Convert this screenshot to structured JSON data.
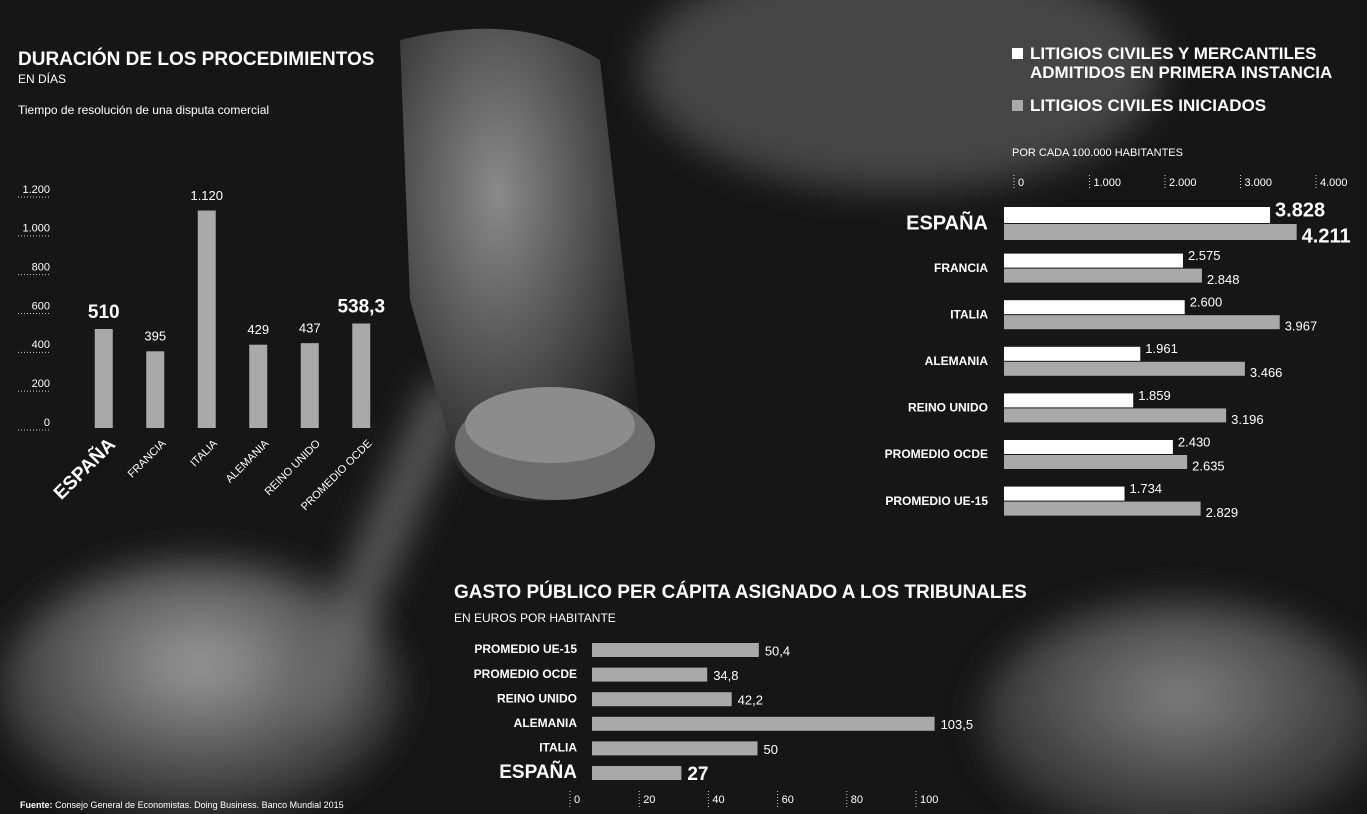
{
  "source": {
    "label": "Fuente:",
    "text": "Consejo General de Economistas. Doing Business. Banco Mundial 2015"
  },
  "chart_data": [
    {
      "type": "bar",
      "title": "DURACIÓN DE LOS PROCEDIMIENTOS",
      "subtitle": "EN DÍAS",
      "note": "Tiempo de resolución de una disputa comercial",
      "categories": [
        "ESPAÑA",
        "FRANCIA",
        "ITALIA",
        "ALEMANIA",
        "REINO UNIDO",
        "PROMEDIO OCDE"
      ],
      "values": [
        510,
        395,
        1120,
        429,
        437,
        538.3
      ],
      "value_labels": [
        "510",
        "395",
        "1.120",
        "429",
        "437",
        "538,3"
      ],
      "color": "#a9a9a9",
      "ylim": [
        0,
        1200
      ],
      "yticks": [
        0,
        200,
        400,
        600,
        800,
        {
          "value": 1000,
          "label": "1.000"
        },
        {
          "value": 1200,
          "label": "1.200"
        }
      ]
    },
    {
      "type": "grouped_barh",
      "subtitle": "POR CADA 100.000 HABITANTES",
      "categories": [
        "ESPAÑA",
        "FRANCIA",
        "ITALIA",
        "ALEMANIA",
        "REINO UNIDO",
        "PROMEDIO OCDE",
        "PROMEDIO UE-15"
      ],
      "series": [
        {
          "name": "LITIGIOS CIVILES Y MERCANTILES ADMITIDOS EN PRIMERA INSTANCIA",
          "color": "#ffffff",
          "values": [
            3828,
            2575,
            2600,
            1961,
            1859,
            2430,
            1734
          ],
          "value_labels": [
            "3.828",
            "2.575",
            "2.600",
            "1.961",
            "1.859",
            "2.430",
            "1.734"
          ]
        },
        {
          "name": "LITIGIOS CIVILES INICIADOS",
          "color": "#a9a9a9",
          "values": [
            4211,
            2848,
            3967,
            3466,
            3196,
            2635,
            2829
          ],
          "value_labels": [
            "4.211",
            "2.848",
            "3.967",
            "3.466",
            "3.196",
            "2.635",
            "2.829"
          ]
        }
      ],
      "xlim": [
        0,
        4000
      ],
      "xticks": [
        0,
        {
          "value": 1000,
          "label": "1.000"
        },
        {
          "value": 2000,
          "label": "2.000"
        },
        {
          "value": 3000,
          "label": "3.000"
        },
        {
          "value": 4000,
          "label": "4.000"
        }
      ]
    },
    {
      "type": "barh",
      "title": "GASTO PÚBLICO PER CÁPITA ASIGNADO A LOS TRIBUNALES",
      "subtitle": "EN EUROS POR HABITANTE",
      "categories": [
        "PROMEDIO UE-15",
        "PROMEDIO OCDE",
        "REINO UNIDO",
        "ALEMANIA",
        "ITALIA",
        "ESPAÑA"
      ],
      "values": [
        50.4,
        34.8,
        42.2,
        103.5,
        50,
        27
      ],
      "value_labels": [
        "50,4",
        "34,8",
        "42,2",
        "103,5",
        "50",
        "27"
      ],
      "color": "#a9a9a9",
      "xlim": [
        0,
        100
      ],
      "xticks": [
        0,
        20,
        40,
        60,
        80,
        100
      ]
    }
  ]
}
